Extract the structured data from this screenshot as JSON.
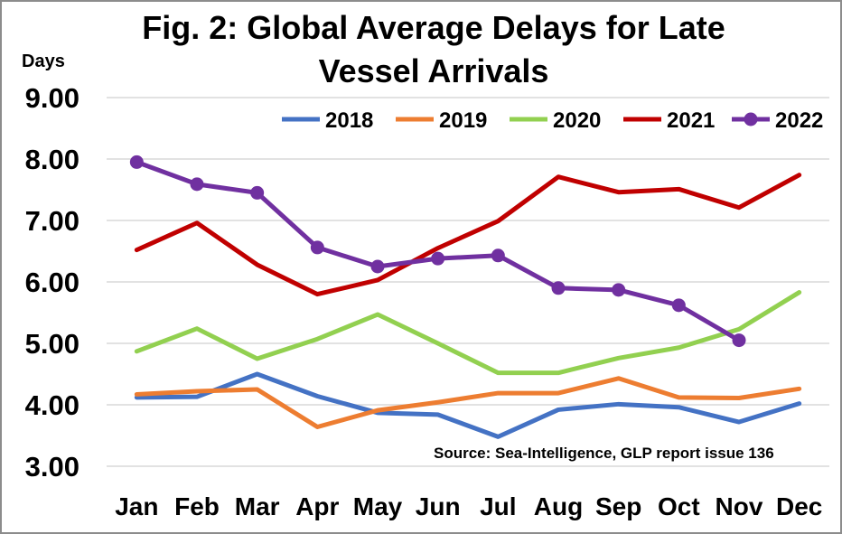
{
  "chart_data": {
    "type": "line",
    "title_lines": [
      "Fig. 2: Global Average Delays for Late",
      "Vessel Arrivals"
    ],
    "ylabel": "Days",
    "xlabel": "",
    "source": "Source: Sea-Intelligence, GLP report issue 136",
    "categories": [
      "Jan",
      "Feb",
      "Mar",
      "Apr",
      "May",
      "Jun",
      "Jul",
      "Aug",
      "Sep",
      "Oct",
      "Nov",
      "Dec"
    ],
    "ylim": [
      3.0,
      9.0
    ],
    "yticks": [
      "3.00",
      "4.00",
      "5.00",
      "6.00",
      "7.00",
      "8.00",
      "9.00"
    ],
    "grid": true,
    "legend_position": "top-right",
    "series": [
      {
        "name": "2018",
        "color": "#4472c4",
        "markers": false,
        "values": [
          4.12,
          4.13,
          4.5,
          4.14,
          3.87,
          3.84,
          3.48,
          3.92,
          4.01,
          3.96,
          3.72,
          4.02
        ]
      },
      {
        "name": "2019",
        "color": "#ed7d31",
        "markers": false,
        "values": [
          4.17,
          4.22,
          4.25,
          3.64,
          3.91,
          4.04,
          4.19,
          4.19,
          4.43,
          4.12,
          4.11,
          4.26
        ]
      },
      {
        "name": "2020",
        "color": "#92d050",
        "markers": false,
        "values": [
          4.87,
          5.24,
          4.75,
          5.07,
          5.47,
          5.0,
          4.52,
          4.52,
          4.76,
          4.93,
          5.23,
          5.83
        ]
      },
      {
        "name": "2021",
        "color": "#c00000",
        "markers": false,
        "values": [
          6.52,
          6.96,
          6.28,
          5.8,
          6.03,
          6.55,
          6.99,
          7.71,
          7.46,
          7.51,
          7.21,
          7.74
        ]
      },
      {
        "name": "2022",
        "color": "#7030a0",
        "markers": true,
        "values": [
          7.95,
          7.59,
          7.45,
          6.56,
          6.25,
          6.38,
          6.43,
          5.9,
          5.87,
          5.62,
          5.05,
          null
        ]
      }
    ]
  }
}
